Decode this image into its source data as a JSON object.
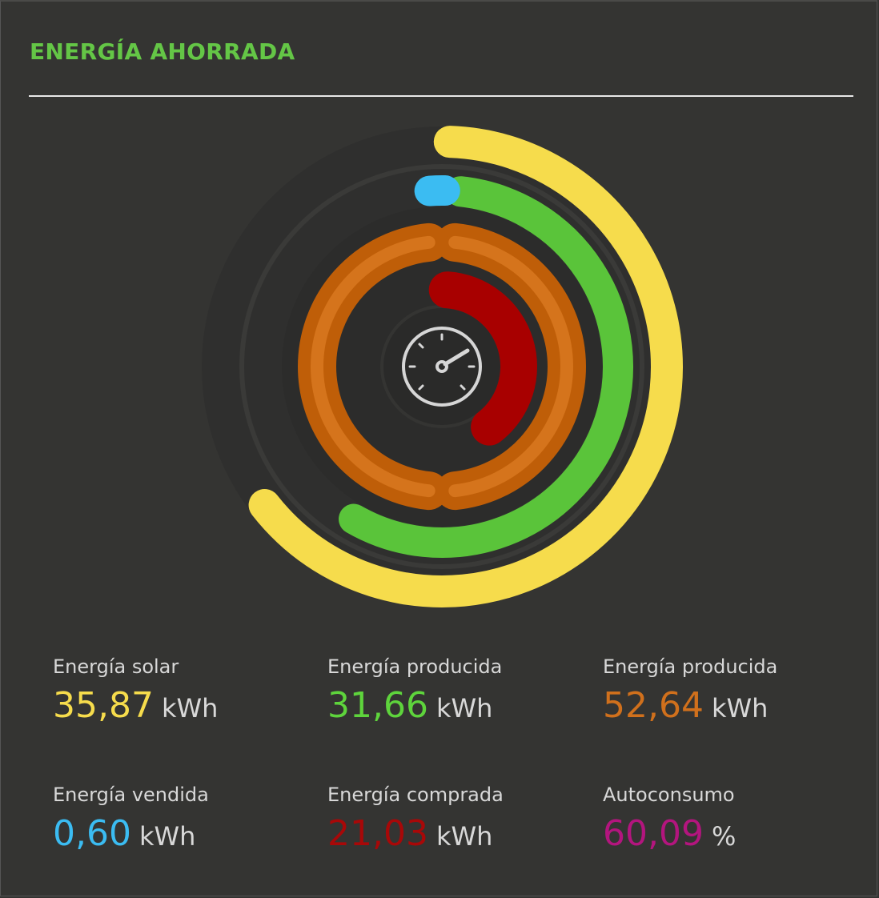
{
  "header": {
    "title": "ENERGÍA AHORRADA"
  },
  "stats": [
    {
      "label": "Energía solar",
      "value": "35,87",
      "unit": "kWh"
    },
    {
      "label": "Energía producida",
      "value": "31,66",
      "unit": "kWh"
    },
    {
      "label": "Energía producida",
      "value": "52,64",
      "unit": "kWh"
    },
    {
      "label": "Energía vendida",
      "value": "0,60",
      "unit": "kWh"
    },
    {
      "label": "Energía comprada",
      "value": "21,03",
      "unit": "kWh"
    },
    {
      "label": "Autoconsumo",
      "value": "60,09",
      "unit": "%"
    }
  ]
}
